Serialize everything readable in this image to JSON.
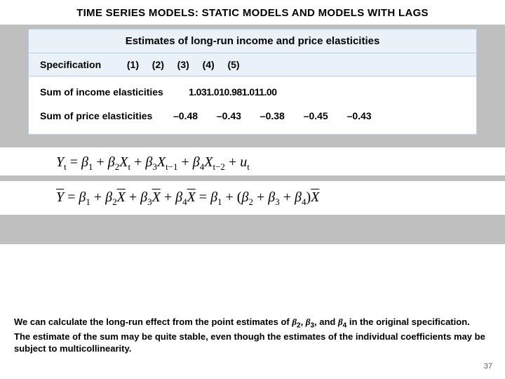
{
  "title": "TIME SERIES MODELS:  STATIC MODELS AND MODELS WITH LAGS",
  "table": {
    "heading": "Estimates of long-run income and price elasticities",
    "spec_label": "Specification",
    "cols": [
      "(1)",
      "(2)",
      "(3)",
      "(4)",
      "(5)"
    ],
    "row1_label": "Sum of income elasticities",
    "row1_values": [
      "1.03",
      "1.01",
      "0.98",
      "1.01",
      "1.00"
    ],
    "row2_label": "Sum of price elasticities",
    "row2_values": [
      "–0.48",
      "–0.43",
      "–0.38",
      "–0.45",
      "–0.43"
    ]
  },
  "equations": {
    "eq1_html": "Y<sub>t</sub> <span class='up'>=</span> β<sub>1</sub> <span class='up'>+</span> β<sub>2</sub>X<sub>t</sub> <span class='up'>+</span> β<sub>3</sub>X<sub>t−1</sub> <span class='up'>+</span> β<sub>4</sub>X<sub>t−2</sub> <span class='up'>+</span> u<sub>t</sub>",
    "eq2_html": "<span class='overbar'>Y</span> <span class='up'>=</span> β<sub>1</sub> <span class='up'>+</span> β<sub>2</sub><span class='overbar'>X</span> <span class='up'>+</span> β<sub>3</sub><span class='overbar'>X</span> <span class='up'>+</span> β<sub>4</sub><span class='overbar'>X</span> <span class='up'>=</span> β<sub>1</sub> <span class='up'>+ (</span>β<sub>2</sub> <span class='up'>+</span> β<sub>3</sub> <span class='up'>+</span> β<sub>4</sub><span class='up'>)</span><span class='overbar'>X</span>"
  },
  "bottom_html": "We can calculate the long-run effect from the point estimates of <span class='it'>β</span><sub>2</sub>, <span class='it'>β</span><sub>3</sub>, and <span class='it'>β</span><sub>4</sub> in the original specification.  The estimate of the sum may be quite stable, even though the estimates of the individual coefficients may be subject to multicollinearity.",
  "page_number": "37",
  "colors": {
    "gray_band": "#bfbfbf",
    "table_header_bg": "#eaf1f8",
    "table_border": "#b7cde4",
    "text": "#000000",
    "page_num": "#595959",
    "background": "#ffffff"
  }
}
